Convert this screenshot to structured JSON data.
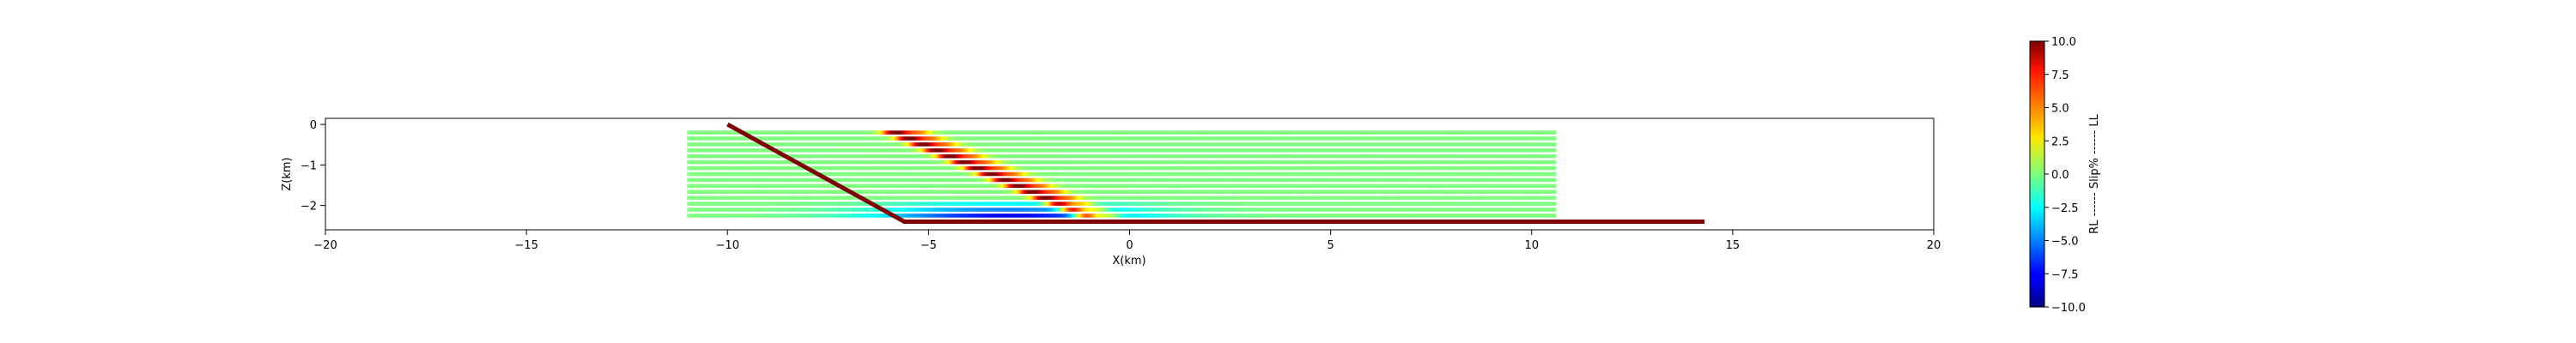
{
  "chart_data": {
    "type": "line",
    "title": "",
    "xlabel": "X(km)",
    "ylabel": "Z(km)",
    "xlim": [
      -20,
      20
    ],
    "ylim": [
      -2.6,
      0.15
    ],
    "xticks": [
      -20,
      -15,
      -10,
      -5,
      0,
      5,
      10,
      15,
      20
    ],
    "yticks": [
      0,
      -1,
      -2
    ],
    "grid": false,
    "fault": {
      "color": "#7f0000",
      "x": [
        -10.0,
        -5.6,
        14.3
      ],
      "z": [
        0.0,
        -2.4,
        -2.4
      ]
    },
    "slip_layers": {
      "x_start": -11.0,
      "x_end": 10.6,
      "z_top": -0.2,
      "z_bottom": -2.25,
      "count": 15,
      "background_slip_percent": 0.0,
      "high_slip_zone": "layer intersections with dipping fault segment",
      "low_slip_zone": "layers just above the flat fault segment near x=-5"
    },
    "colorbar": {
      "label": "RL ------ Slip% ------ LL",
      "colormap": "jet",
      "min": -10.0,
      "max": 10.0,
      "ticks": [
        "10.0",
        "7.5",
        "5.0",
        "2.5",
        "0.0",
        "−2.5",
        "−5.0",
        "−7.5",
        "−10.0"
      ]
    }
  }
}
